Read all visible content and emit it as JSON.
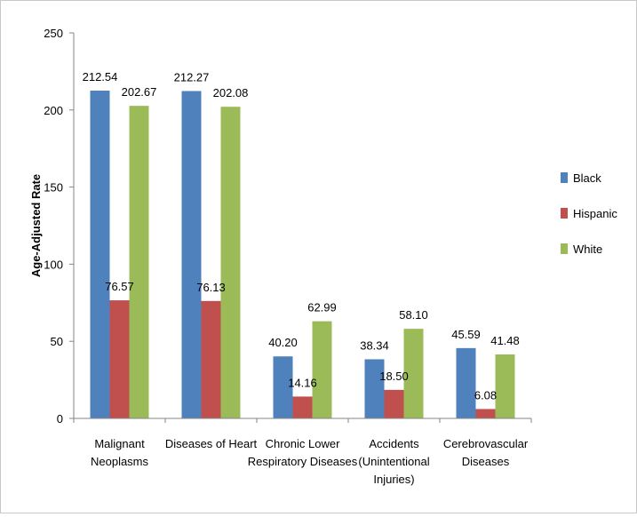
{
  "chart_data": {
    "type": "bar",
    "title": "",
    "xlabel": "",
    "ylabel": "Age-Adjusted Rate",
    "ylim": [
      0,
      250
    ],
    "yticks": [
      0,
      50,
      100,
      150,
      200,
      250
    ],
    "categories": [
      [
        "Malignant",
        "Neoplasms"
      ],
      [
        "Diseases of Heart"
      ],
      [
        "Chronic Lower",
        "Respiratory Diseases"
      ],
      [
        "Accidents",
        "(Unintentional",
        "Injuries)"
      ],
      [
        "Cerebrovascular",
        "Diseases"
      ]
    ],
    "series": [
      {
        "name": "Black",
        "color": "#4f81bd",
        "values": [
          212.54,
          212.27,
          40.2,
          38.34,
          45.59
        ],
        "labels": [
          "212.54",
          "212.27",
          "40.20",
          "38.34",
          "45.59"
        ]
      },
      {
        "name": "Hispanic",
        "color": "#c0504d",
        "values": [
          76.57,
          76.13,
          14.16,
          18.5,
          6.08
        ],
        "labels": [
          "76.57",
          "76.13",
          "14.16",
          "18.50",
          "6.08"
        ]
      },
      {
        "name": "White",
        "color": "#9bbb59",
        "values": [
          202.67,
          202.08,
          62.99,
          58.1,
          41.48
        ],
        "labels": [
          "202.67",
          "202.08",
          "62.99",
          "58.10",
          "41.48"
        ]
      }
    ],
    "grid": false,
    "legend": "right"
  }
}
